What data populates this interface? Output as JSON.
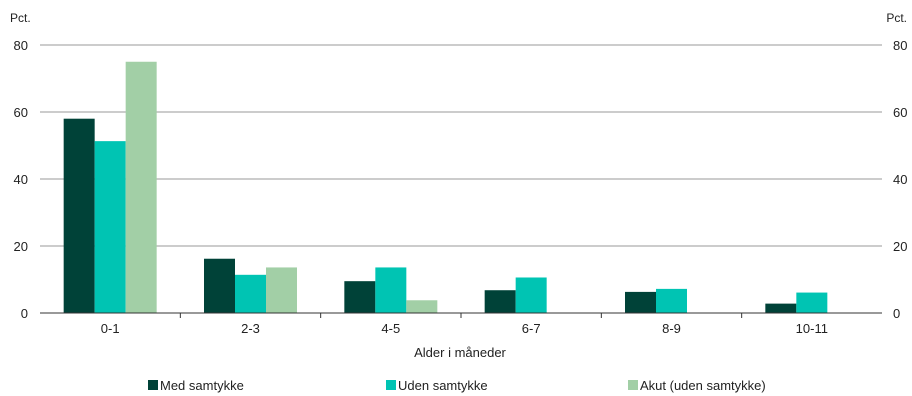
{
  "chart_data": {
    "type": "bar",
    "unit_left": "Pct.",
    "unit_right": "Pct.",
    "xlabel": "Alder i måneder",
    "categories": [
      "0-1",
      "2-3",
      "4-5",
      "6-7",
      "8-9",
      "10-11"
    ],
    "series": [
      {
        "name": "Med samtykke",
        "color": "#004238",
        "values": [
          58,
          16.2,
          9.5,
          6.8,
          6.3,
          2.8
        ]
      },
      {
        "name": "Uden samtykke",
        "color": "#00c4b3",
        "values": [
          51.3,
          11.4,
          13.6,
          10.6,
          7.2,
          6.1
        ]
      },
      {
        "name": "Akut (uden samtykke)",
        "color": "#a2cfa6",
        "values": [
          75,
          13.6,
          3.8,
          null,
          null,
          null
        ]
      }
    ],
    "ylim": [
      0,
      80
    ],
    "yticks": [
      0,
      20,
      40,
      60,
      80
    ],
    "grid": true,
    "legend_position": "bottom"
  }
}
